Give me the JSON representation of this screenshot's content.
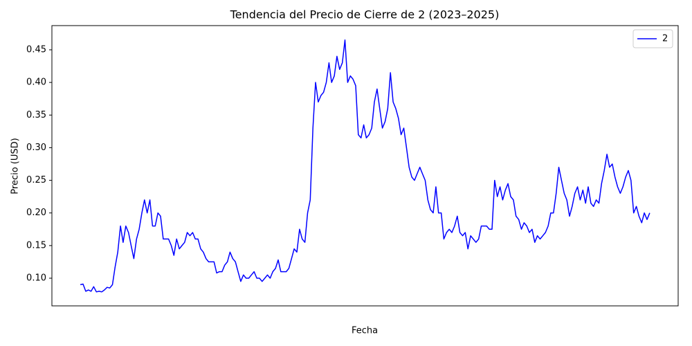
{
  "chart_data": {
    "type": "line",
    "title": "Tendencia del Precio de Cierre de 2 (2023–2025)",
    "x_label": "Fecha",
    "y_label": "Precio (USD)",
    "ylim": [
      0.0576,
      0.4871
    ],
    "yticks": [
      {
        "value": 0.1,
        "label": "0.10"
      },
      0.15,
      {
        "value": 0.2,
        "label": "0.20"
      },
      0.25,
      {
        "value": 0.3,
        "label": "0.30"
      },
      0.35,
      {
        "value": 0.4,
        "label": "0.40"
      },
      0.45
    ],
    "legend": "upper right",
    "series": [
      {
        "name": "2",
        "color": "#0000ff",
        "values": [
          0.09,
          0.091,
          0.08,
          0.082,
          0.08,
          0.087,
          0.079,
          0.08,
          0.079,
          0.082,
          0.086,
          0.085,
          0.09,
          0.117,
          0.14,
          0.18,
          0.155,
          0.18,
          0.17,
          0.15,
          0.13,
          0.16,
          0.175,
          0.2,
          0.22,
          0.2,
          0.22,
          0.18,
          0.18,
          0.2,
          0.195,
          0.16,
          0.16,
          0.16,
          0.15,
          0.135,
          0.16,
          0.145,
          0.15,
          0.155,
          0.17,
          0.165,
          0.17,
          0.16,
          0.16,
          0.145,
          0.14,
          0.13,
          0.125,
          0.125,
          0.125,
          0.108,
          0.11,
          0.11,
          0.12,
          0.125,
          0.14,
          0.13,
          0.125,
          0.11,
          0.095,
          0.105,
          0.1,
          0.1,
          0.105,
          0.11,
          0.1,
          0.1,
          0.095,
          0.1,
          0.105,
          0.1,
          0.11,
          0.115,
          0.128,
          0.11,
          0.11,
          0.11,
          0.115,
          0.13,
          0.145,
          0.14,
          0.175,
          0.16,
          0.155,
          0.2,
          0.22,
          0.33,
          0.4,
          0.37,
          0.38,
          0.385,
          0.4,
          0.43,
          0.4,
          0.41,
          0.44,
          0.42,
          0.43,
          0.465,
          0.4,
          0.41,
          0.405,
          0.395,
          0.32,
          0.315,
          0.335,
          0.315,
          0.32,
          0.33,
          0.37,
          0.39,
          0.36,
          0.33,
          0.34,
          0.36,
          0.415,
          0.37,
          0.36,
          0.345,
          0.32,
          0.33,
          0.3,
          0.27,
          0.255,
          0.25,
          0.26,
          0.27,
          0.26,
          0.25,
          0.22,
          0.205,
          0.2,
          0.24,
          0.2,
          0.2,
          0.16,
          0.17,
          0.175,
          0.17,
          0.18,
          0.195,
          0.17,
          0.165,
          0.17,
          0.145,
          0.165,
          0.16,
          0.155,
          0.16,
          0.18,
          0.18,
          0.18,
          0.175,
          0.175,
          0.25,
          0.225,
          0.24,
          0.22,
          0.235,
          0.245,
          0.225,
          0.22,
          0.195,
          0.19,
          0.175,
          0.185,
          0.18,
          0.17,
          0.175,
          0.155,
          0.165,
          0.16,
          0.165,
          0.17,
          0.18,
          0.2,
          0.2,
          0.23,
          0.27,
          0.25,
          0.23,
          0.22,
          0.195,
          0.21,
          0.23,
          0.24,
          0.22,
          0.235,
          0.215,
          0.24,
          0.215,
          0.21,
          0.22,
          0.215,
          0.245,
          0.265,
          0.29,
          0.27,
          0.275,
          0.255,
          0.24,
          0.23,
          0.24,
          0.255,
          0.265,
          0.25,
          0.2,
          0.21,
          0.195,
          0.185,
          0.2,
          0.19,
          0.2
        ]
      }
    ]
  }
}
